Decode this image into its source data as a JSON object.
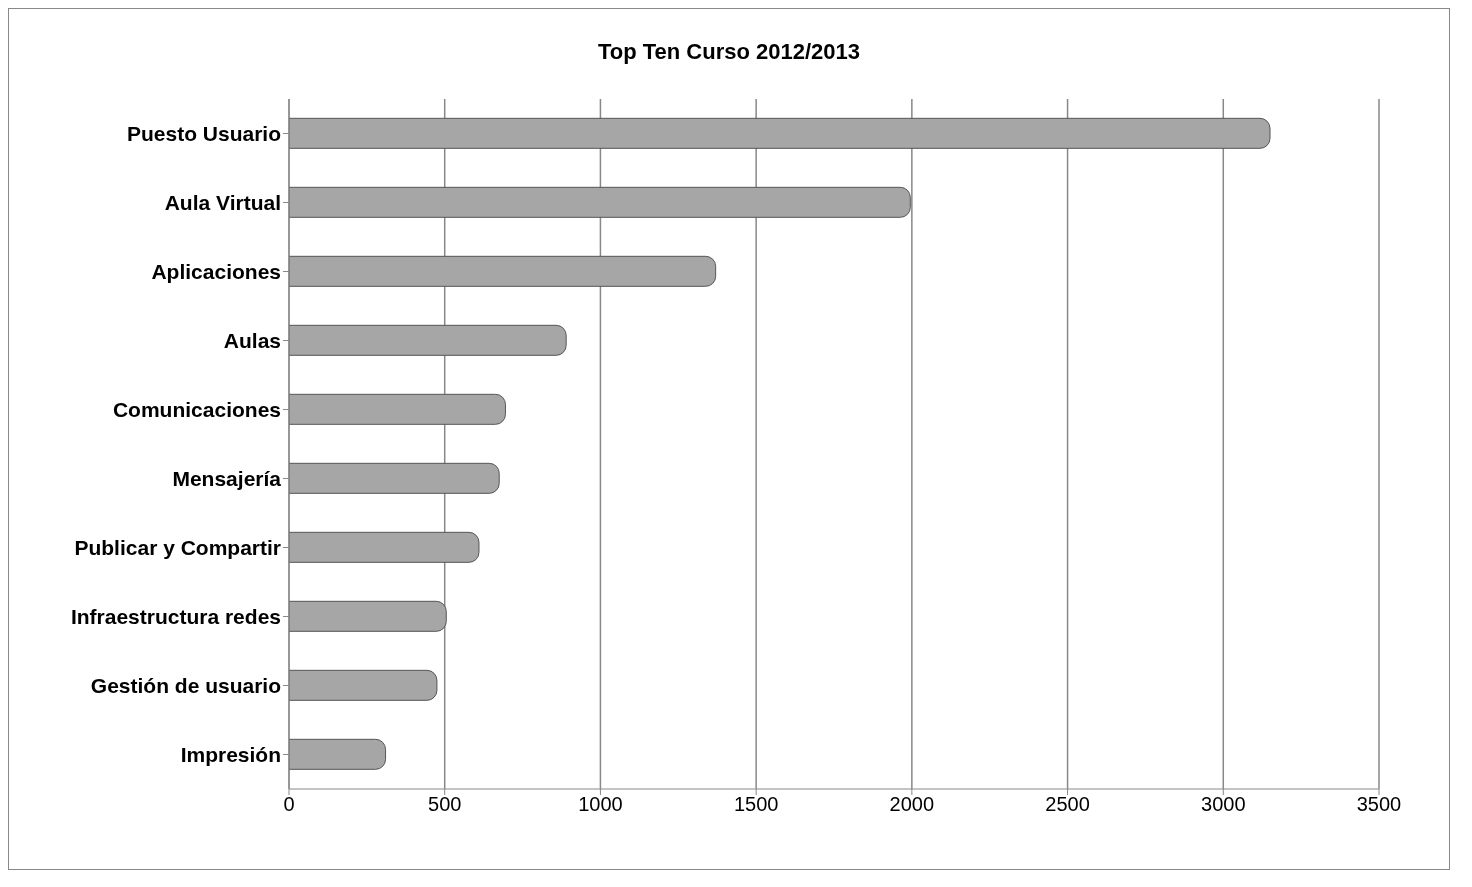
{
  "chart_data": {
    "type": "bar",
    "orientation": "horizontal",
    "title": "Top Ten Curso 2012/2013",
    "categories": [
      "Puesto Usuario",
      "Aula Virtual",
      "Aplicaciones",
      "Aulas",
      "Comunicaciones",
      "Mensajería",
      "Publicar y Compartir",
      "Infraestructura redes",
      "Gestión de usuario",
      "Impresión"
    ],
    "values": [
      3150,
      1995,
      1370,
      890,
      695,
      675,
      610,
      505,
      475,
      310
    ],
    "color": "#a6a6a6",
    "xlim": [
      0,
      3500
    ],
    "xticks": [
      0,
      500,
      1000,
      1500,
      2000,
      2500,
      3000,
      3500
    ],
    "grid": "x",
    "legend": false
  }
}
